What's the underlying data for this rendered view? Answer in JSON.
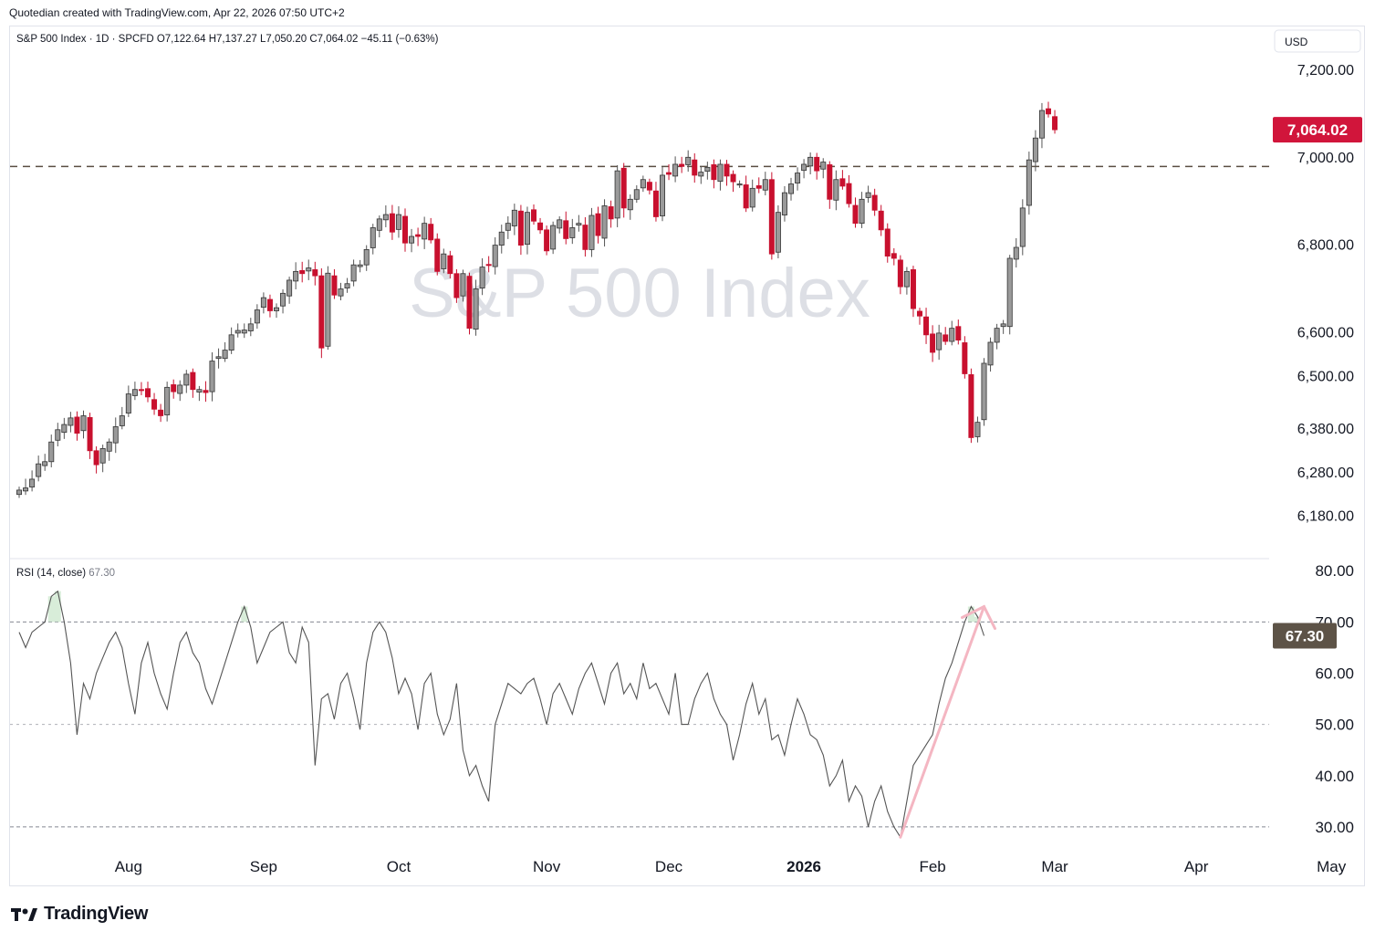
{
  "credit": "Quotedian created with TradingView.com, Apr 22, 2026 07:50 UTC+2",
  "brand": "TradingView",
  "colors": {
    "up": "#9a9a9a",
    "down": "#c8102e",
    "rsi_line": "#555555",
    "rsi_arrow": "#f4b6c2",
    "price_badge": "#d1153b",
    "rsi_badge": "#5d5347"
  },
  "chart_data": [
    {
      "type": "candlestick",
      "legend": {
        "symbol": "S&P 500 Index · 1D · SPCFD",
        "open": "O7,122.64",
        "high": "H7,137.27",
        "low": "L7,050.20",
        "close": "C7,064.02",
        "change": "−45.11 (−0.63%)"
      },
      "watermark": "S&P 500 Index",
      "currency": "USD",
      "ylim": [
        6100,
        7250
      ],
      "y_ticks": [
        {
          "value": 7200,
          "label": "7,200.00"
        },
        {
          "value": 7000,
          "label": "7,000.00"
        },
        {
          "value": 6800,
          "label": "6,800.00"
        },
        {
          "value": 6600,
          "label": "6,600.00"
        },
        {
          "value": 6500,
          "label": "6,500.00"
        },
        {
          "value": 6380,
          "label": "6,380.00"
        },
        {
          "value": 6280,
          "label": "6,280.00"
        },
        {
          "value": 6180,
          "label": "6,180.00"
        }
      ],
      "last_price": {
        "value": 7064.02,
        "label": "7,064.02"
      },
      "horizontal_line": 6980,
      "x_axis": [
        {
          "label": "Aug",
          "index": 17
        },
        {
          "label": "Sep",
          "index": 38
        },
        {
          "label": "Oct",
          "index": 59
        },
        {
          "label": "Nov",
          "index": 82
        },
        {
          "label": "Dec",
          "index": 101
        },
        {
          "label": "2026",
          "index": 122,
          "bold": true
        },
        {
          "label": "Feb",
          "index": 142
        },
        {
          "label": "Mar",
          "index": 161
        },
        {
          "label": "Apr",
          "index": 183
        },
        {
          "label": "May",
          "index": 204
        }
      ],
      "closes": [
        6240,
        6245,
        6265,
        6300,
        6305,
        6350,
        6378,
        6390,
        6405,
        6370,
        6410,
        6330,
        6298,
        6335,
        6350,
        6385,
        6410,
        6460,
        6470,
        6468,
        6453,
        6425,
        6410,
        6475,
        6465,
        6480,
        6505,
        6470,
        6470,
        6463,
        6535,
        6545,
        6560,
        6595,
        6605,
        6606,
        6620,
        6652,
        6680,
        6650,
        6657,
        6690,
        6720,
        6740,
        6735,
        6748,
        6730,
        6565,
        6736,
        6686,
        6700,
        6712,
        6755,
        6755,
        6790,
        6840,
        6860,
        6870,
        6830,
        6870,
        6805,
        6820,
        6820,
        6850,
        6812,
        6740,
        6780,
        6735,
        6680,
        6735,
        6610,
        6700,
        6750,
        6755,
        6800,
        6830,
        6850,
        6880,
        6800,
        6875,
        6855,
        6835,
        6787,
        6845,
        6858,
        6815,
        6840,
        6850,
        6790,
        6868,
        6822,
        6890,
        6860,
        6970,
        6885,
        6905,
        6927,
        6950,
        6926,
        6865,
        6960,
        6962,
        6985,
        6980,
        7001,
        6960,
        6967,
        6978,
        6950,
        6985,
        6958,
        6945,
        6940,
        6885,
        6930,
        6930,
        6950,
        6780,
        6875,
        6920,
        6940,
        6965,
        6985,
        7001,
        6970,
        6990,
        6905,
        6950,
        6935,
        6895,
        6850,
        6905,
        6920,
        6880,
        6835,
        6775,
        6770,
        6705,
        6740,
        6655,
        6638,
        6595,
        6555,
        6599,
        6580,
        6610,
        6583,
        6506,
        6360,
        6395,
        6530,
        6578,
        6610,
        6620,
        6770,
        6795,
        6885,
        6995,
        7045,
        7108,
        7100,
        7064
      ],
      "candle_range": {
        "first_index": 0,
        "count_shown": "all"
      }
    },
    {
      "type": "line",
      "legend": {
        "name": "RSI (14, close)",
        "value": "67.30"
      },
      "ylim": [
        25,
        82
      ],
      "y_ticks": [
        {
          "value": 80,
          "label": "80.00"
        },
        {
          "value": 70,
          "label": "70.00"
        },
        {
          "value": 60,
          "label": "60.00"
        },
        {
          "value": 50,
          "label": "50.00"
        },
        {
          "value": 40,
          "label": "40.00"
        },
        {
          "value": 30,
          "label": "30.00"
        }
      ],
      "bands": [
        70,
        50,
        30
      ],
      "last_value": {
        "value": 67.3,
        "label": "67.30"
      },
      "values": [
        68,
        65,
        68,
        69,
        70,
        75,
        76,
        70,
        62,
        48,
        58,
        55,
        60,
        63,
        66,
        68,
        65,
        58,
        52,
        62,
        66,
        60,
        56,
        53,
        60,
        66,
        68,
        64,
        62,
        57,
        54,
        58,
        62,
        66,
        70,
        73,
        69,
        62,
        65,
        68,
        69,
        70,
        64,
        62,
        69,
        66,
        42,
        55,
        56,
        51,
        58,
        60,
        55,
        49,
        62,
        68,
        70,
        68,
        63,
        56,
        59,
        56,
        49,
        58,
        60,
        52,
        48,
        51,
        58,
        45,
        40,
        42,
        38,
        35,
        50,
        54,
        58,
        57,
        56,
        58,
        59,
        55,
        50,
        56,
        58,
        55,
        52,
        57,
        60,
        62,
        58,
        54,
        60,
        62,
        56,
        58,
        55,
        62,
        57,
        58,
        55,
        52,
        60,
        50,
        50,
        55,
        58,
        60,
        55,
        52,
        50,
        43,
        48,
        54,
        58,
        52,
        55,
        47,
        48,
        44,
        50,
        55,
        52,
        48,
        47,
        44,
        38,
        40,
        43,
        35,
        38,
        36,
        30,
        35,
        38,
        33,
        30,
        28,
        35,
        42,
        44,
        46,
        48,
        54,
        59,
        62,
        66,
        70,
        73,
        71,
        67.3
      ],
      "arrow": {
        "from_index": 137,
        "from_value": 28,
        "to_index": 150,
        "to_value": 73
      }
    }
  ]
}
